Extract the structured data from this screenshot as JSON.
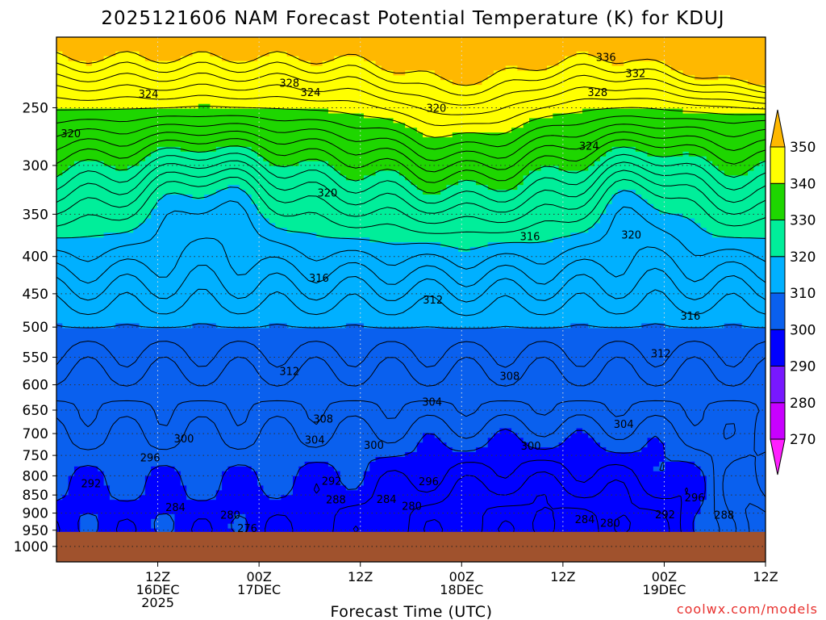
{
  "chart_data": {
    "type": "filled-contour",
    "title": "2025121606 NAM Forecast Potential Temperature (K) for KDUJ",
    "xlabel": "Forecast Time (UTC)",
    "credit": "coolwx.com/models",
    "y_ticks": [
      250,
      300,
      350,
      400,
      450,
      500,
      550,
      600,
      650,
      700,
      750,
      800,
      850,
      900,
      950,
      1000
    ],
    "y_scale": "log-pressure (hPa)",
    "ylim": [
      200,
      1050
    ],
    "x_ticks": [
      {
        "line1": "12Z",
        "line2": "16DEC",
        "line3": "2025"
      },
      {
        "line1": "00Z",
        "line2": "17DEC",
        "line3": ""
      },
      {
        "line1": "12Z",
        "line2": "",
        "line3": ""
      },
      {
        "line1": "00Z",
        "line2": "18DEC",
        "line3": ""
      },
      {
        "line1": "12Z",
        "line2": "",
        "line3": ""
      },
      {
        "line1": "00Z",
        "line2": "19DEC",
        "line3": ""
      },
      {
        "line1": "12Z",
        "line2": "",
        "line3": ""
      }
    ],
    "x_range_hours": [
      -6,
      78
    ],
    "x_tick_hours": [
      6,
      18,
      30,
      42,
      54,
      66,
      78
    ],
    "colorbar": {
      "levels": [
        270,
        280,
        290,
        300,
        310,
        320,
        330,
        340,
        350
      ],
      "colors": [
        "#ff1fff",
        "#c800ff",
        "#7818ff",
        "#0000ff",
        "#0a60ee",
        "#00b0ff",
        "#00ee9a",
        "#1ed600",
        "#ffff00",
        "#ffb800"
      ]
    },
    "ground_color": "#a0522d",
    "surface_pressure_hpa": 955,
    "grid": true,
    "contour_interval_k": 2,
    "contour_labels": [
      {
        "value": 336,
        "t": 59.1,
        "p": 213
      },
      {
        "value": 332,
        "t": 62.6,
        "p": 224
      },
      {
        "value": 328,
        "t": 21.6,
        "p": 231
      },
      {
        "value": 324,
        "t": 24.1,
        "p": 238
      },
      {
        "value": 324,
        "t": 4.9,
        "p": 239
      },
      {
        "value": 328,
        "t": 58.1,
        "p": 238
      },
      {
        "value": 320,
        "t": 39.0,
        "p": 250
      },
      {
        "value": 320,
        "t": -4.3,
        "p": 271
      },
      {
        "value": 324,
        "t": 57.1,
        "p": 282
      },
      {
        "value": 320,
        "t": 26.1,
        "p": 327
      },
      {
        "value": 316,
        "t": 50.1,
        "p": 375
      },
      {
        "value": 320,
        "t": 62.1,
        "p": 373
      },
      {
        "value": 316,
        "t": 25.1,
        "p": 428
      },
      {
        "value": 312,
        "t": 38.6,
        "p": 458
      },
      {
        "value": 316,
        "t": 69.1,
        "p": 482
      },
      {
        "value": 312,
        "t": 65.6,
        "p": 543
      },
      {
        "value": 312,
        "t": 21.6,
        "p": 574
      },
      {
        "value": 308,
        "t": 47.7,
        "p": 583
      },
      {
        "value": 304,
        "t": 38.5,
        "p": 633
      },
      {
        "value": 308,
        "t": 25.6,
        "p": 668
      },
      {
        "value": 304,
        "t": 61.2,
        "p": 679
      },
      {
        "value": 304,
        "t": 24.6,
        "p": 713
      },
      {
        "value": 300,
        "t": 9.1,
        "p": 711
      },
      {
        "value": 300,
        "t": 31.6,
        "p": 725
      },
      {
        "value": 300,
        "t": 50.2,
        "p": 727
      },
      {
        "value": 296,
        "t": 5.1,
        "p": 755
      },
      {
        "value": 292,
        "t": 26.6,
        "p": 813
      },
      {
        "value": 296,
        "t": 38.1,
        "p": 814
      },
      {
        "value": 292,
        "t": -1.9,
        "p": 819
      },
      {
        "value": 296,
        "t": 69.6,
        "p": 856
      },
      {
        "value": 288,
        "t": 27.1,
        "p": 862
      },
      {
        "value": 284,
        "t": 33.1,
        "p": 861
      },
      {
        "value": 280,
        "t": 36.1,
        "p": 879
      },
      {
        "value": 284,
        "t": 8.1,
        "p": 883
      },
      {
        "value": 280,
        "t": 14.6,
        "p": 905
      },
      {
        "value": 288,
        "t": 73.1,
        "p": 904
      },
      {
        "value": 292,
        "t": 66.1,
        "p": 903
      },
      {
        "value": 284,
        "t": 56.6,
        "p": 917
      },
      {
        "value": 280,
        "t": 59.6,
        "p": 928
      },
      {
        "value": 276,
        "t": 16.6,
        "p": 943
      }
    ]
  }
}
